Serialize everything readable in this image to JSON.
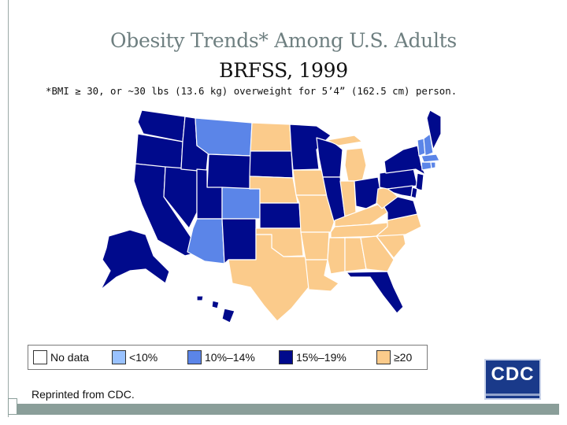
{
  "title": {
    "line1": "Obesity Trends* Among U.S. Adults",
    "line2": "BRFSS, 1999"
  },
  "footnote": "*BMI ≥ 30, or ~30 lbs (13.6 kg) overweight for 5’4” (162.5 cm) person.",
  "colors": {
    "no_data": "#ffffff",
    "lt10": "#99c2ff",
    "c10_14": "#5b85e8",
    "c15_19": "#000a8c",
    "ge20": "#fbcb8b",
    "border": "#ffffff"
  },
  "legend": [
    {
      "label": "No data",
      "color_key": "no_data"
    },
    {
      "label": "<10%",
      "color_key": "lt10"
    },
    {
      "label": "10%–14%",
      "color_key": "c10_14"
    },
    {
      "label": "15%–19%",
      "color_key": "c15_19"
    },
    {
      "label": "≥20",
      "color_key": "ge20"
    }
  ],
  "categories": {
    "c10_14": [
      "Montana",
      "Colorado",
      "Arizona",
      "New Hampshire",
      "Vermont",
      "Massachusetts",
      "Connecticut",
      "Rhode Island"
    ],
    "c15_19": [
      "Washington",
      "Oregon",
      "California",
      "Nevada",
      "Idaho",
      "Utah",
      "Wyoming",
      "New Mexico",
      "South Dakota",
      "Kansas",
      "Minnesota",
      "Wisconsin",
      "Illinois",
      "Ohio",
      "Pennsylvania",
      "New York",
      "Maine",
      "New Jersey",
      "Delaware",
      "Maryland",
      "Virginia",
      "Florida",
      "Alaska",
      "Hawaii"
    ],
    "ge20": [
      "North Dakota",
      "Nebraska",
      "Oklahoma",
      "Texas",
      "Iowa",
      "Missouri",
      "Arkansas",
      "Louisiana",
      "Michigan",
      "Indiana",
      "Kentucky",
      "Tennessee",
      "Mississippi",
      "Alabama",
      "Georgia",
      "South Carolina",
      "North Carolina",
      "West Virginia"
    ]
  },
  "reprint": "Reprinted from CDC.",
  "logo": {
    "text": "CDC"
  }
}
